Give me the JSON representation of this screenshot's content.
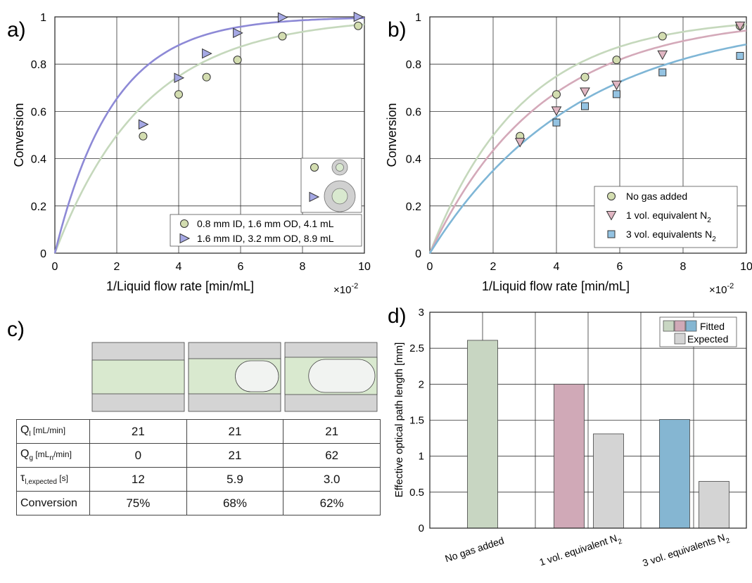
{
  "panel_labels": {
    "a": "a)",
    "b": "b)",
    "c": "c)",
    "d": "d)"
  },
  "chart_data": [
    {
      "id": "a",
      "type": "scatter",
      "xlabel": "1/Liquid flow rate [min/mL]",
      "ylabel": "Conversion",
      "x_multiplier": "×10",
      "x_multiplier_exp": "-2",
      "xlim": [
        0,
        10
      ],
      "ylim": [
        0,
        1
      ],
      "xticks": [
        "0",
        "2",
        "4",
        "6",
        "8",
        "10"
      ],
      "yticks": [
        "0",
        "0.2",
        "0.4",
        "0.6",
        "0.8",
        "1"
      ],
      "grid": true,
      "legend_position": "bottom-right",
      "series": [
        {
          "name": "0.8 mm ID, 1.6 mm OD, 4.1 mL",
          "marker": "circle",
          "fill": "#d3ddb0",
          "line_color": "#c5d8bc",
          "x": [
            2.85,
            4.0,
            4.9,
            5.9,
            7.35,
            9.8
          ],
          "y": [
            0.495,
            0.672,
            0.745,
            0.818,
            0.918,
            0.962
          ],
          "fit_rate": 0.345
        },
        {
          "name": "1.6 mm ID, 3.2 mm OD, 8.9 mL",
          "marker": "triangle-right",
          "fill": "#a5a8e4",
          "line_color": "#8d89d6",
          "x": [
            2.85,
            4.0,
            4.9,
            5.9,
            7.35,
            9.8
          ],
          "y": [
            0.545,
            0.742,
            0.845,
            0.932,
            0.998,
            1.0
          ],
          "fit_rate": 0.53
        }
      ]
    },
    {
      "id": "b",
      "type": "scatter",
      "xlabel": "1/Liquid flow rate [min/mL]",
      "ylabel": "Conversion",
      "x_multiplier": "×10",
      "x_multiplier_exp": "-2",
      "xlim": [
        0,
        10
      ],
      "ylim": [
        0,
        1
      ],
      "xticks": [
        "0",
        "2",
        "4",
        "6",
        "8",
        "10"
      ],
      "yticks": [
        "0",
        "0.2",
        "0.4",
        "0.6",
        "0.8",
        "1"
      ],
      "grid": true,
      "legend_position": "bottom-right",
      "series": [
        {
          "name": "No gas added",
          "name_sub": "",
          "marker": "circle",
          "fill": "#d3ddb0",
          "line_color": "#c5d8bc",
          "x": [
            2.85,
            4.0,
            4.9,
            5.9,
            7.35,
            9.8
          ],
          "y": [
            0.495,
            0.672,
            0.745,
            0.818,
            0.918,
            0.962
          ],
          "fit_rate": 0.345
        },
        {
          "name": "1 vol. equivalent N",
          "name_sub": "2",
          "marker": "triangle-down",
          "fill": "#e0b6c2",
          "line_color": "#d4a9b9",
          "x": [
            2.85,
            4.0,
            4.9,
            5.9,
            7.35,
            9.8
          ],
          "y": [
            0.47,
            0.603,
            0.683,
            0.712,
            0.84,
            0.962
          ],
          "fit_rate": 0.285
        },
        {
          "name": "3 vol. equivalents N",
          "name_sub": "2",
          "marker": "square",
          "fill": "#94c3e2",
          "line_color": "#7fb6d6",
          "x": [
            2.85,
            4.0,
            4.9,
            5.9,
            7.35,
            9.8
          ],
          "y": [
            null,
            0.553,
            0.622,
            0.673,
            0.765,
            0.835
          ],
          "fit_rate": 0.215
        }
      ]
    },
    {
      "id": "d",
      "type": "bar",
      "ylabel": "Effective optical path length [mm]",
      "ylim": [
        0,
        3
      ],
      "yticks": [
        "0",
        "0.5",
        "1",
        "1.5",
        "2",
        "2.5",
        "3"
      ],
      "grid": true,
      "legend_position": "top-right",
      "categories": [
        {
          "label": "No gas added",
          "sub": ""
        },
        {
          "label": "1 vol. equivalent N",
          "sub": "2"
        },
        {
          "label": "3 vol. equivalents N",
          "sub": "2"
        }
      ],
      "series": [
        {
          "name": "Fitted",
          "values": [
            2.61,
            2.0,
            1.51
          ],
          "colors": [
            "#c8d6c2",
            "#d0a9b7",
            "#85b6d2"
          ]
        },
        {
          "name": "Expected",
          "values": [
            null,
            1.31,
            0.65
          ],
          "colors": [
            "#d4d4d4",
            "#d4d4d4",
            "#d4d4d4"
          ]
        }
      ]
    }
  ],
  "table_c": {
    "rows": [
      {
        "label": "Q",
        "label_sub": "l",
        "unit": "[mL/min]",
        "unit_sub": "",
        "unit_tail": "",
        "values": [
          "21",
          "21",
          "21"
        ]
      },
      {
        "label": "Q",
        "label_sub": "g",
        "unit": "[mL",
        "unit_sub": "n",
        "unit_tail": "/min]",
        "values": [
          "0",
          "21",
          "62"
        ]
      },
      {
        "label": "τ",
        "label_sub": "l,expected",
        "unit": "[s]",
        "unit_sub": "",
        "unit_tail": "",
        "values": [
          "12",
          "5.9",
          "3.0"
        ]
      },
      {
        "label": "Conversion",
        "label_sub": "",
        "unit": "",
        "unit_sub": "",
        "unit_tail": "",
        "values": [
          "75%",
          "68%",
          "62%"
        ]
      }
    ],
    "bubble_fractions": [
      0,
      0.5,
      0.75
    ]
  },
  "colors": {
    "liquid": "#d9e9cf",
    "wall": "#d4d4d4",
    "gas": "#f1f3f1",
    "grid": "#333333",
    "axis": "#222222"
  }
}
